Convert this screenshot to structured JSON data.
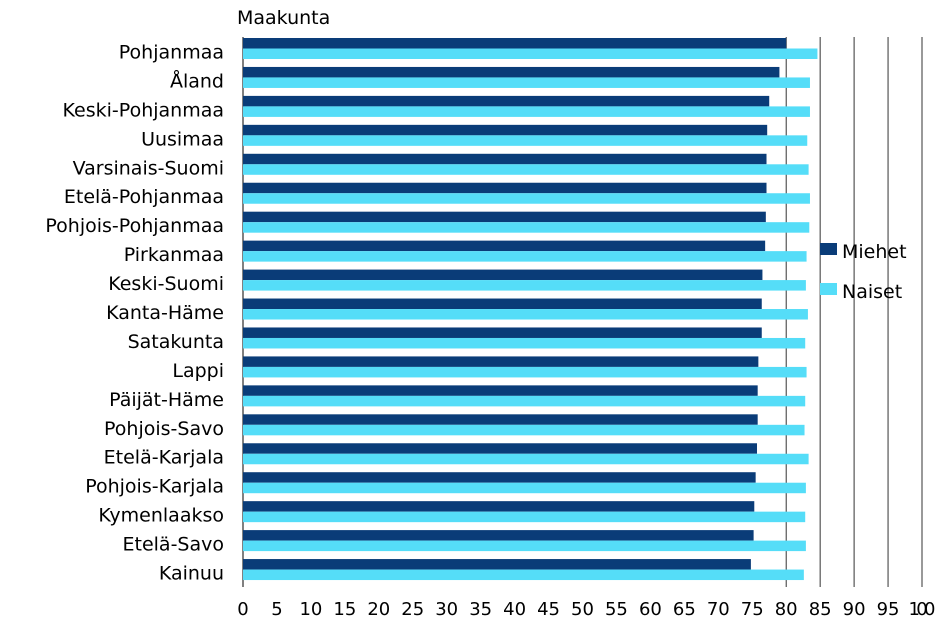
{
  "chart_data": {
    "type": "bar",
    "orientation": "horizontal",
    "title": "Maakunta",
    "categories": [
      "Pohjanmaa",
      "Åland",
      "Keski-Pohjanmaa",
      "Uusimaa",
      "Varsinais-Suomi",
      "Etelä-Pohjanmaa",
      "Pohjois-Pohjanmaa",
      "Pirkanmaa",
      "Keski-Suomi",
      "Kanta-Häme",
      "Satakunta",
      "Lappi",
      "Päijät-Häme",
      "Pohjois-Savo",
      "Etelä-Karjala",
      "Pohjois-Karjala",
      "Kymenlaakso",
      "Etelä-Savo",
      "Kainuu"
    ],
    "series": [
      {
        "name": "Miehet",
        "color": "#0a3c78",
        "values": [
          80.0,
          79.0,
          77.5,
          77.2,
          77.1,
          77.1,
          77.0,
          76.9,
          76.5,
          76.4,
          76.4,
          75.9,
          75.8,
          75.8,
          75.7,
          75.5,
          75.3,
          75.2,
          74.8
        ]
      },
      {
        "name": "Naiset",
        "color": "#55ddf8",
        "values": [
          84.6,
          83.5,
          83.5,
          83.1,
          83.3,
          83.5,
          83.4,
          83.0,
          82.9,
          83.2,
          82.8,
          83.0,
          82.8,
          82.7,
          83.3,
          82.9,
          82.8,
          82.9,
          82.6
        ]
      }
    ],
    "xlim": [
      0,
      100
    ],
    "xticks": [
      "0",
      "5",
      "10",
      "15",
      "20",
      "25",
      "30",
      "35",
      "40",
      "45",
      "50",
      "55",
      "60",
      "65",
      "70",
      "75",
      "80",
      "85",
      "90",
      "95",
      "100"
    ],
    "grid": "vertical lines from 80 to 100",
    "legend": "right"
  }
}
